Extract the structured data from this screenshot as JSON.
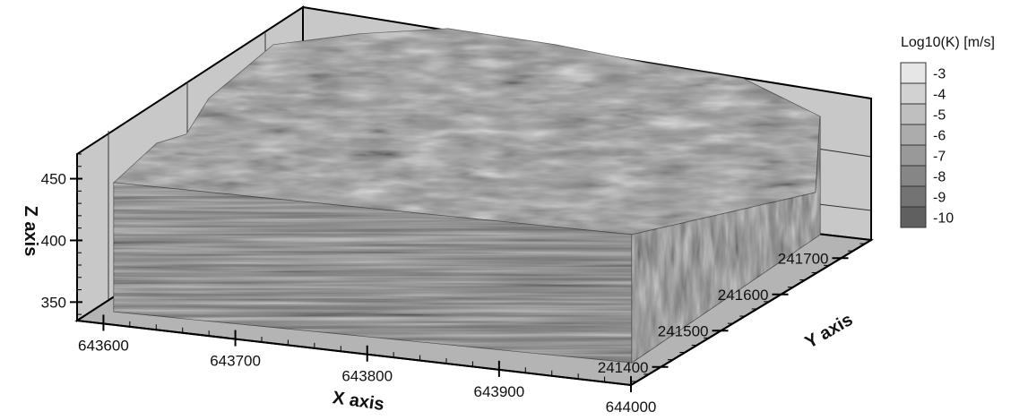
{
  "chart_data": {
    "type": "3d-block",
    "xlabel": "X axis",
    "ylabel": "Y axis",
    "zlabel": "Z axis",
    "x_ticks": [
      643600,
      643700,
      643800,
      643900,
      644000
    ],
    "y_ticks": [
      241400,
      241500,
      241600,
      241700
    ],
    "z_ticks": [
      350,
      400,
      450
    ],
    "xlim": [
      643580,
      644000
    ],
    "ylim": [
      241350,
      241750
    ],
    "zlim": [
      335,
      470
    ],
    "legend": {
      "title": "Log10(K) [m/s]",
      "levels": [
        -3,
        -4,
        -5,
        -6,
        -7,
        -8,
        -9,
        -10
      ],
      "colors": [
        "#e6e6e6",
        "#d2d2d2",
        "#bfbfbf",
        "#acacac",
        "#999999",
        "#868686",
        "#737373",
        "#606060"
      ],
      "placement": "right"
    },
    "grid": true
  }
}
